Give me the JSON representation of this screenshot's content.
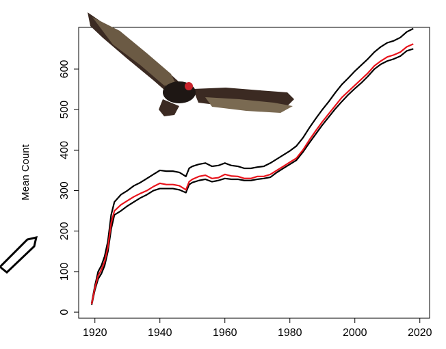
{
  "chart_data": {
    "type": "line",
    "y_label": "Mean Count",
    "x": [
      1919,
      1920,
      1921,
      1922,
      1923,
      1924,
      1925,
      1926,
      1928,
      1930,
      1932,
      1934,
      1936,
      1938,
      1940,
      1942,
      1944,
      1946,
      1948,
      1949,
      1950,
      1952,
      1954,
      1956,
      1958,
      1960,
      1962,
      1964,
      1966,
      1968,
      1970,
      1972,
      1974,
      1976,
      1978,
      1980,
      1982,
      1984,
      1986,
      1988,
      1990,
      1992,
      1994,
      1996,
      1998,
      2000,
      2002,
      2004,
      2006,
      2008,
      2010,
      2012,
      2014,
      2016,
      2018
    ],
    "series": [
      {
        "color": "#000000",
        "values": [
          22,
          65,
          100,
          115,
          138,
          175,
          240,
          272,
          290,
          300,
          312,
          320,
          330,
          340,
          350,
          348,
          348,
          345,
          335,
          355,
          360,
          365,
          368,
          360,
          362,
          368,
          362,
          360,
          355,
          355,
          358,
          360,
          368,
          378,
          388,
          398,
          410,
          430,
          455,
          478,
          500,
          520,
          542,
          562,
          578,
          595,
          610,
          625,
          642,
          655,
          665,
          670,
          678,
          692,
          700
        ]
      },
      {
        "color": "#000000",
        "values": [
          18,
          55,
          82,
          95,
          115,
          150,
          205,
          240,
          250,
          262,
          272,
          282,
          290,
          300,
          305,
          305,
          305,
          302,
          295,
          315,
          320,
          325,
          328,
          322,
          325,
          330,
          328,
          328,
          325,
          325,
          328,
          330,
          333,
          345,
          355,
          365,
          375,
          395,
          418,
          440,
          462,
          482,
          502,
          520,
          537,
          552,
          566,
          582,
          600,
          612,
          620,
          625,
          632,
          645,
          650
        ]
      },
      {
        "color": "#e8141c",
        "values": [
          20,
          60,
          90,
          105,
          125,
          160,
          220,
          250,
          265,
          275,
          285,
          293,
          300,
          310,
          318,
          315,
          315,
          312,
          302,
          322,
          328,
          335,
          338,
          330,
          332,
          340,
          336,
          335,
          330,
          330,
          335,
          335,
          340,
          350,
          360,
          370,
          380,
          400,
          425,
          448,
          470,
          490,
          510,
          530,
          545,
          560,
          575,
          590,
          608,
          620,
          630,
          635,
          642,
          655,
          662
        ]
      }
    ],
    "xlim": [
      1915,
      2023
    ],
    "ylim": [
      -15,
      703
    ],
    "xticks": [
      1920,
      1940,
      1960,
      1980,
      2000,
      2020
    ],
    "yticks": [
      0,
      100,
      200,
      300,
      400,
      500,
      600
    ]
  }
}
